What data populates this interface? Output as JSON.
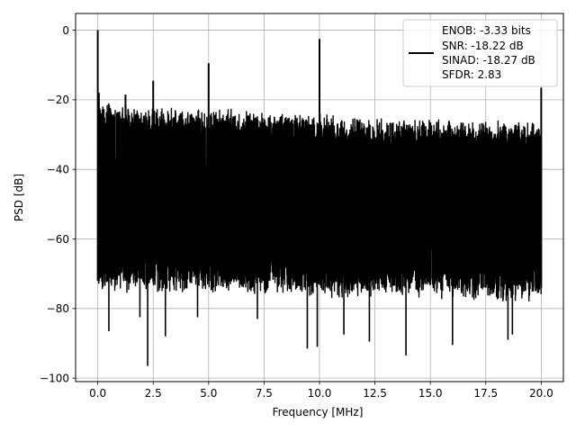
{
  "chart_data": {
    "type": "line",
    "title": "",
    "xlabel": "Frequency [MHz]",
    "ylabel": "PSD [dB]",
    "xlim": [
      -1.0,
      21.0
    ],
    "ylim": [
      -101.0,
      4.8
    ],
    "xticks": [
      0.0,
      2.5,
      5.0,
      7.5,
      10.0,
      12.5,
      15.0,
      17.5,
      20.0
    ],
    "xtick_labels": [
      "0.0",
      "2.5",
      "5.0",
      "7.5",
      "10.0",
      "12.5",
      "15.0",
      "17.5",
      "20.0"
    ],
    "yticks": [
      0,
      -20,
      -40,
      -60,
      -80,
      -100
    ],
    "ytick_labels": [
      "0",
      "−20",
      "−40",
      "−60",
      "−80",
      "−100"
    ],
    "grid": true,
    "legend_position": "top-right",
    "series": [
      {
        "name": "ENOB: -3.33 bits\nSNR: -18.22 dB\nSINAD: -18.27 dB\nSFDR: 2.83",
        "legend_lines": [
          "ENOB: -3.33 bits",
          "SNR: -18.22 dB",
          "SINAD: -18.27 dB",
          "SFDR: 2.83"
        ],
        "color": "#000000",
        "noise_band": [
          {
            "x": 0.0,
            "top": -26,
            "bottom": -72
          },
          {
            "x": 2.5,
            "top": -28,
            "bottom": -72
          },
          {
            "x": 5.0,
            "top": -28,
            "bottom": -72
          },
          {
            "x": 7.5,
            "top": -29,
            "bottom": -72
          },
          {
            "x": 10.0,
            "top": -30,
            "bottom": -73
          },
          {
            "x": 12.5,
            "top": -31,
            "bottom": -73
          },
          {
            "x": 15.0,
            "top": -31,
            "bottom": -73
          },
          {
            "x": 17.5,
            "top": -32,
            "bottom": -74
          },
          {
            "x": 20.0,
            "top": -32,
            "bottom": -74
          }
        ],
        "peaks": [
          {
            "x": 0.0,
            "y": 0.0
          },
          {
            "x": 0.05,
            "y": -18.0
          },
          {
            "x": 1.25,
            "y": -18.5
          },
          {
            "x": 2.5,
            "y": -14.5
          },
          {
            "x": 5.0,
            "y": -9.5
          },
          {
            "x": 7.5,
            "y": -26.5
          },
          {
            "x": 10.0,
            "y": -2.5
          },
          {
            "x": 15.0,
            "y": -26.5
          },
          {
            "x": 17.5,
            "y": -28.0
          },
          {
            "x": 20.0,
            "y": -16.5
          }
        ],
        "dips": [
          {
            "x": 0.5,
            "y": -86.5
          },
          {
            "x": 1.9,
            "y": -82.5
          },
          {
            "x": 2.25,
            "y": -96.5
          },
          {
            "x": 3.05,
            "y": -88.0
          },
          {
            "x": 4.5,
            "y": -82.5
          },
          {
            "x": 7.2,
            "y": -83.0
          },
          {
            "x": 9.45,
            "y": -91.5
          },
          {
            "x": 9.9,
            "y": -91.0
          },
          {
            "x": 11.1,
            "y": -87.5
          },
          {
            "x": 12.25,
            "y": -89.5
          },
          {
            "x": 13.9,
            "y": -93.5
          },
          {
            "x": 16.0,
            "y": -90.5
          },
          {
            "x": 18.5,
            "y": -89.0
          },
          {
            "x": 18.7,
            "y": -87.5
          }
        ]
      }
    ]
  }
}
